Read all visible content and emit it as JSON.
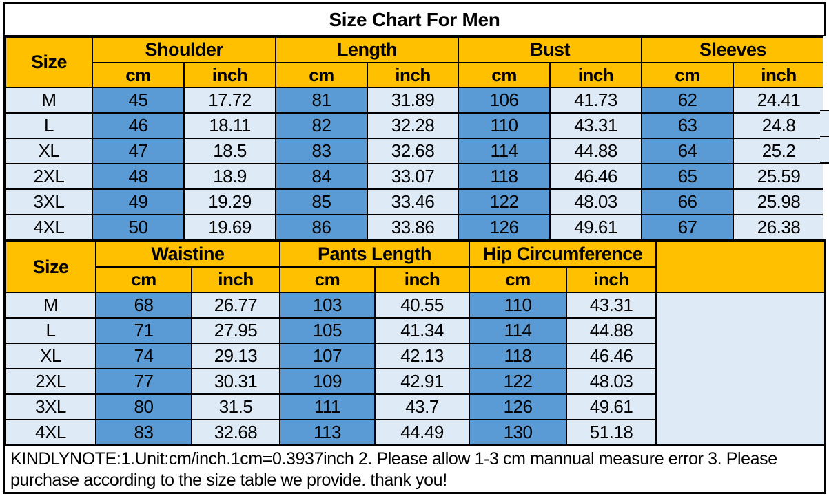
{
  "title": "Size Chart For Men",
  "note": "KINDLYNOTE:1.Unit:cm/inch.1cm=0.3937inch 2. Please allow 1-3 cm mannual measure error 3.  Please purchase according to the size table we provide. thank you!",
  "colors": {
    "header_bg": "#FFC000",
    "cm_cell_bg": "#5B9BD5",
    "inch_cell_bg": "#DEEBF7",
    "border": "#000000",
    "text": "#000000",
    "background": "#FFFFFF"
  },
  "sections": [
    {
      "size_label": "Size",
      "groups": [
        {
          "label": "Shoulder",
          "sub": [
            "cm",
            "inch"
          ]
        },
        {
          "label": "Length",
          "sub": [
            "cm",
            "inch"
          ]
        },
        {
          "label": "Bust",
          "sub": [
            "cm",
            "inch"
          ]
        },
        {
          "label": "Sleeves",
          "sub": [
            "cm",
            "inch"
          ]
        }
      ],
      "trailing_empty": false,
      "rows": [
        {
          "size": "M",
          "values": [
            "45",
            "17.72",
            "81",
            "31.89",
            "106",
            "41.73",
            "62",
            "24.41"
          ]
        },
        {
          "size": "L",
          "values": [
            "46",
            "18.11",
            "82",
            "32.28",
            "110",
            "43.31",
            "63",
            "24.8"
          ]
        },
        {
          "size": "XL",
          "values": [
            "47",
            "18.5",
            "83",
            "32.68",
            "114",
            "44.88",
            "64",
            "25.2"
          ]
        },
        {
          "size": "2XL",
          "values": [
            "48",
            "18.9",
            "84",
            "33.07",
            "118",
            "46.46",
            "65",
            "25.59"
          ]
        },
        {
          "size": "3XL",
          "values": [
            "49",
            "19.29",
            "85",
            "33.46",
            "122",
            "48.03",
            "66",
            "25.98"
          ]
        },
        {
          "size": "4XL",
          "values": [
            "50",
            "19.69",
            "86",
            "33.86",
            "126",
            "49.61",
            "67",
            "26.38"
          ]
        }
      ]
    },
    {
      "size_label": "Size",
      "groups": [
        {
          "label": "Waistine",
          "sub": [
            "cm",
            "inch"
          ]
        },
        {
          "label": "Pants Length",
          "sub": [
            "cm",
            "inch"
          ]
        },
        {
          "label": "Hip Circumference",
          "sub": [
            "cm",
            "inch"
          ]
        }
      ],
      "trailing_empty": true,
      "rows": [
        {
          "size": "M",
          "values": [
            "68",
            "26.77",
            "103",
            "40.55",
            "110",
            "43.31"
          ]
        },
        {
          "size": "L",
          "values": [
            "71",
            "27.95",
            "105",
            "41.34",
            "114",
            "44.88"
          ]
        },
        {
          "size": "XL",
          "values": [
            "74",
            "29.13",
            "107",
            "42.13",
            "118",
            "46.46"
          ]
        },
        {
          "size": "2XL",
          "values": [
            "77",
            "30.31",
            "109",
            "42.91",
            "122",
            "48.03"
          ]
        },
        {
          "size": "3XL",
          "values": [
            "80",
            "31.5",
            "111",
            "43.7",
            "126",
            "49.61"
          ]
        },
        {
          "size": "4XL",
          "values": [
            "83",
            "32.68",
            "113",
            "44.49",
            "130",
            "51.18"
          ]
        }
      ]
    }
  ],
  "chart_data": [
    {
      "type": "table",
      "title": "Size Chart For Men",
      "columns": [
        "Size",
        "Shoulder cm",
        "Shoulder inch",
        "Length cm",
        "Length inch",
        "Bust cm",
        "Bust inch",
        "Sleeves cm",
        "Sleeves inch"
      ],
      "rows": [
        [
          "M",
          45,
          17.72,
          81,
          31.89,
          106,
          41.73,
          62,
          24.41
        ],
        [
          "L",
          46,
          18.11,
          82,
          32.28,
          110,
          43.31,
          63,
          24.8
        ],
        [
          "XL",
          47,
          18.5,
          83,
          32.68,
          114,
          44.88,
          64,
          25.2
        ],
        [
          "2XL",
          48,
          18.9,
          84,
          33.07,
          118,
          46.46,
          65,
          25.59
        ],
        [
          "3XL",
          49,
          19.29,
          85,
          33.46,
          122,
          48.03,
          66,
          25.98
        ],
        [
          "4XL",
          50,
          19.69,
          86,
          33.86,
          126,
          49.61,
          67,
          26.38
        ]
      ]
    },
    {
      "type": "table",
      "title": "Size Chart For Men (lower body)",
      "columns": [
        "Size",
        "Waistine cm",
        "Waistine inch",
        "Pants Length cm",
        "Pants Length inch",
        "Hip Circumference cm",
        "Hip Circumference inch"
      ],
      "rows": [
        [
          "M",
          68,
          26.77,
          103,
          40.55,
          110,
          43.31
        ],
        [
          "L",
          71,
          27.95,
          105,
          41.34,
          114,
          44.88
        ],
        [
          "XL",
          74,
          29.13,
          107,
          42.13,
          118,
          46.46
        ],
        [
          "2XL",
          77,
          30.31,
          109,
          42.91,
          122,
          48.03
        ],
        [
          "3XL",
          80,
          31.5,
          111,
          43.7,
          126,
          49.61
        ],
        [
          "4XL",
          83,
          32.68,
          113,
          44.49,
          130,
          51.18
        ]
      ]
    }
  ]
}
